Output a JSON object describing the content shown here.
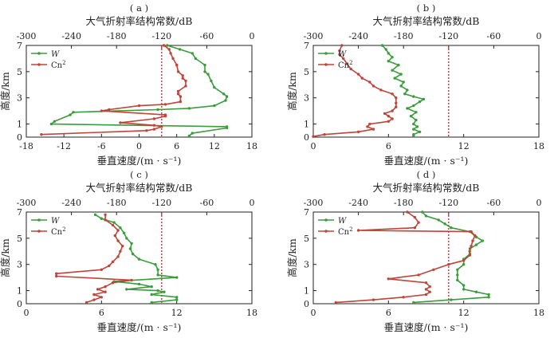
{
  "figure": {
    "legend_w": "W",
    "legend_cn": "Cn",
    "legend_cn_sup": "2",
    "colors": {
      "w": "#3a9c3a",
      "cn": "#c0443a",
      "vline": "#b03030",
      "axis": "#222222"
    }
  },
  "chart_data": [
    {
      "id": "a",
      "type": "line",
      "panel_label": "( a )",
      "top_xlabel": "大气折射率结构常数/dB",
      "bottom_xlabel": "垂直速度/(m · s⁻¹)",
      "ylabel": "高度/km",
      "top_xlim": [
        -300,
        0
      ],
      "top_xticks": [
        "-300",
        "-240",
        "-180",
        "-120",
        "-60",
        "0"
      ],
      "bottom_xlim": [
        -18,
        18
      ],
      "bottom_xticks": [
        "-18",
        "-12",
        "-6",
        "0",
        "6",
        "12",
        "18"
      ],
      "ylim": [
        0,
        7
      ],
      "yticks": [
        "0",
        "1",
        "3",
        "5",
        "7"
      ],
      "ref_line_top_x": -120,
      "legend_position": "top-left",
      "series": [
        {
          "key": "w",
          "axis": "bottom",
          "points": [
            [
              8,
              0.1
            ],
            [
              8.5,
              0.3
            ],
            [
              14,
              0.7
            ],
            [
              14,
              0.8
            ],
            [
              -14,
              1.0
            ],
            [
              -13.5,
              1.2
            ],
            [
              -11,
              1.7
            ],
            [
              -10.5,
              1.9
            ],
            [
              3,
              2.1
            ],
            [
              8,
              2.2
            ],
            [
              12,
              2.4
            ],
            [
              13.8,
              2.8
            ],
            [
              14,
              3.1
            ],
            [
              13.5,
              3.3
            ],
            [
              12,
              3.8
            ],
            [
              11.5,
              4.3
            ],
            [
              11,
              4.8
            ],
            [
              10.5,
              5.0
            ],
            [
              10.5,
              5.5
            ],
            [
              9,
              6.0
            ],
            [
              8.5,
              6.4
            ],
            [
              6.5,
              6.7
            ],
            [
              4.5,
              7.0
            ]
          ]
        },
        {
          "key": "cn",
          "axis": "top",
          "points": [
            [
              -280,
              0.2
            ],
            [
              -140,
              0.5
            ],
            [
              -130,
              0.6
            ],
            [
              -120,
              0.8
            ],
            [
              -130,
              0.9
            ],
            [
              -175,
              1.1
            ],
            [
              -130,
              1.4
            ],
            [
              -115,
              1.6
            ],
            [
              -115,
              1.7
            ],
            [
              -200,
              2.0
            ],
            [
              -190,
              2.1
            ],
            [
              -150,
              2.4
            ],
            [
              -115,
              2.5
            ],
            [
              -95,
              2.7
            ],
            [
              -95,
              3.1
            ],
            [
              -98,
              3.3
            ],
            [
              -98,
              3.5
            ],
            [
              -88,
              3.9
            ],
            [
              -88,
              4.3
            ],
            [
              -92,
              4.5
            ],
            [
              -92,
              4.7
            ],
            [
              -98,
              5.0
            ],
            [
              -100,
              5.5
            ],
            [
              -105,
              6.0
            ],
            [
              -108,
              6.4
            ],
            [
              -110,
              6.7
            ],
            [
              -117,
              7.0
            ]
          ]
        }
      ]
    },
    {
      "id": "b",
      "type": "line",
      "panel_label": "( b )",
      "top_xlabel": "大气折射率结构常数/dB",
      "bottom_xlabel": "垂直速度/(m · s⁻¹)",
      "ylabel": "高度/km",
      "top_xlim": [
        -300,
        0
      ],
      "top_xticks": [
        "-300",
        "-240",
        "-180",
        "-120",
        "-60",
        "0"
      ],
      "bottom_xlim": [
        0,
        18
      ],
      "bottom_xticks": [
        "0",
        "6",
        "12",
        "18"
      ],
      "ylim": [
        0,
        7
      ],
      "yticks": [
        "0",
        "1",
        "3",
        "5",
        "7"
      ],
      "ref_line_top_x": -120,
      "legend_position": "top-left",
      "series": [
        {
          "key": "w",
          "axis": "bottom",
          "points": [
            [
              8,
              0.1
            ],
            [
              8,
              0.2
            ],
            [
              8.5,
              0.4
            ],
            [
              8,
              0.6
            ],
            [
              8.3,
              0.8
            ],
            [
              8,
              1.0
            ],
            [
              8.2,
              1.3
            ],
            [
              7.8,
              1.6
            ],
            [
              8.2,
              1.9
            ],
            [
              7.5,
              2.2
            ],
            [
              8,
              2.4
            ],
            [
              8.5,
              2.7
            ],
            [
              8.8,
              2.9
            ],
            [
              8,
              3.1
            ],
            [
              7.3,
              3.3
            ],
            [
              7.5,
              3.6
            ],
            [
              7,
              3.9
            ],
            [
              7.2,
              4.2
            ],
            [
              6.5,
              4.5
            ],
            [
              7,
              4.8
            ],
            [
              6.3,
              5.1
            ],
            [
              6.8,
              5.5
            ],
            [
              6,
              5.8
            ],
            [
              6.3,
              6.1
            ],
            [
              6,
              6.4
            ],
            [
              5.8,
              6.7
            ],
            [
              5.5,
              7.0
            ]
          ]
        },
        {
          "key": "cn",
          "axis": "top",
          "points": [
            [
              -300,
              0.05
            ],
            [
              -285,
              0.2
            ],
            [
              -240,
              0.4
            ],
            [
              -220,
              0.6
            ],
            [
              -228,
              0.8
            ],
            [
              -225,
              1.0
            ],
            [
              -200,
              1.2
            ],
            [
              -195,
              1.4
            ],
            [
              -200,
              1.6
            ],
            [
              -205,
              1.8
            ],
            [
              -195,
              2.0
            ],
            [
              -190,
              2.3
            ],
            [
              -190,
              2.6
            ],
            [
              -190,
              3.0
            ],
            [
              -195,
              3.3
            ],
            [
              -210,
              3.6
            ],
            [
              -220,
              3.9
            ],
            [
              -225,
              4.2
            ],
            [
              -235,
              4.5
            ],
            [
              -240,
              4.8
            ],
            [
              -250,
              5.2
            ],
            [
              -255,
              5.6
            ],
            [
              -260,
              6.0
            ],
            [
              -265,
              6.3
            ],
            [
              -265,
              6.6
            ],
            [
              -262,
              7.0
            ]
          ]
        }
      ]
    },
    {
      "id": "c",
      "type": "line",
      "panel_label": "( c )",
      "top_xlabel": "大气折射率结构常数/dB",
      "bottom_xlabel": "垂直速度/(m · s⁻¹)",
      "ylabel": "高度/km",
      "top_xlim": [
        -300,
        0
      ],
      "top_xticks": [
        "-300",
        "-240",
        "-180",
        "-120",
        "-60",
        "0"
      ],
      "bottom_xlim": [
        0,
        18
      ],
      "bottom_xticks": [
        "0",
        "6",
        "12",
        "18"
      ],
      "ylim": [
        0,
        7
      ],
      "yticks": [
        "0",
        "1",
        "3",
        "5",
        "7"
      ],
      "ref_line_top_x": -120,
      "legend_position": "top-left",
      "series": [
        {
          "key": "w",
          "axis": "bottom",
          "points": [
            [
              10,
              0.1
            ],
            [
              12,
              0.3
            ],
            [
              12,
              0.5
            ],
            [
              10,
              0.7
            ],
            [
              11,
              0.9
            ],
            [
              10.5,
              1.0
            ],
            [
              8,
              1.1
            ],
            [
              10,
              1.3
            ],
            [
              9,
              1.5
            ],
            [
              7,
              1.7
            ],
            [
              12,
              2.0
            ],
            [
              10.5,
              2.2
            ],
            [
              10.5,
              2.6
            ],
            [
              10.3,
              3.0
            ],
            [
              9,
              3.4
            ],
            [
              8.5,
              3.8
            ],
            [
              8.3,
              4.2
            ],
            [
              8.4,
              4.6
            ],
            [
              8,
              5.0
            ],
            [
              7.8,
              5.4
            ],
            [
              7.5,
              5.8
            ],
            [
              7,
              6.2
            ],
            [
              6,
              6.5
            ],
            [
              5.5,
              6.8
            ]
          ]
        },
        {
          "key": "cn",
          "axis": "top",
          "points": [
            [
              -220,
              0.1
            ],
            [
              -210,
              0.3
            ],
            [
              -200,
              0.5
            ],
            [
              -210,
              0.7
            ],
            [
              -195,
              0.9
            ],
            [
              -205,
              1.1
            ],
            [
              -195,
              1.3
            ],
            [
              -185,
              1.6
            ],
            [
              -160,
              1.8
            ],
            [
              -260,
              2.1
            ],
            [
              -260,
              2.3
            ],
            [
              -200,
              2.6
            ],
            [
              -190,
              2.9
            ],
            [
              -185,
              3.2
            ],
            [
              -178,
              3.6
            ],
            [
              -175,
              4.0
            ],
            [
              -172,
              4.4
            ],
            [
              -178,
              4.8
            ],
            [
              -182,
              5.2
            ],
            [
              -178,
              5.6
            ],
            [
              -185,
              6.0
            ],
            [
              -195,
              6.4
            ],
            [
              -195,
              6.8
            ]
          ]
        }
      ]
    },
    {
      "id": "d",
      "type": "line",
      "panel_label": "( d )",
      "top_xlabel": "大气折射率结构常数/dB",
      "bottom_xlabel": "垂直速度/(m · s⁻¹)",
      "ylabel": "高度/km",
      "top_xlim": [
        -300,
        0
      ],
      "top_xticks": [
        "-300",
        "-240",
        "-180",
        "-120",
        "-60",
        "0"
      ],
      "bottom_xlim": [
        0,
        18
      ],
      "bottom_xticks": [
        "0",
        "6",
        "12",
        "18"
      ],
      "ylim": [
        0,
        7
      ],
      "yticks": [
        "0",
        "1",
        "3",
        "5",
        "7"
      ],
      "ref_line_top_x": -120,
      "legend_position": "top-left",
      "series": [
        {
          "key": "w",
          "axis": "bottom",
          "points": [
            [
              8,
              0.1
            ],
            [
              11,
              0.3
            ],
            [
              14,
              0.5
            ],
            [
              14,
              0.7
            ],
            [
              13,
              0.9
            ],
            [
              12,
              1.1
            ],
            [
              12,
              1.4
            ],
            [
              11.5,
              1.8
            ],
            [
              11.5,
              2.2
            ],
            [
              11.5,
              2.6
            ],
            [
              12,
              3.0
            ],
            [
              12,
              3.4
            ],
            [
              12.5,
              3.8
            ],
            [
              12.5,
              4.2
            ],
            [
              13,
              4.5
            ],
            [
              13.5,
              4.8
            ],
            [
              13,
              5.1
            ],
            [
              12.5,
              5.5
            ],
            [
              11,
              5.8
            ],
            [
              10.5,
              6.1
            ],
            [
              10,
              6.4
            ],
            [
              9,
              6.7
            ],
            [
              8.7,
              7.0
            ]
          ]
        },
        {
          "key": "cn",
          "axis": "top",
          "points": [
            [
              -270,
              0.1
            ],
            [
              -220,
              0.3
            ],
            [
              -180,
              0.5
            ],
            [
              -150,
              0.7
            ],
            [
              -145,
              0.9
            ],
            [
              -150,
              1.1
            ],
            [
              -145,
              1.3
            ],
            [
              -150,
              1.6
            ],
            [
              -200,
              1.9
            ],
            [
              -160,
              2.2
            ],
            [
              -140,
              2.6
            ],
            [
              -120,
              3.0
            ],
            [
              -100,
              3.3
            ],
            [
              -92,
              3.7
            ],
            [
              -92,
              4.0
            ],
            [
              -90,
              4.4
            ],
            [
              -88,
              4.8
            ],
            [
              -85,
              5.2
            ],
            [
              -90,
              5.5
            ],
            [
              -240,
              5.6
            ],
            [
              -165,
              5.8
            ],
            [
              -160,
              6.2
            ],
            [
              -165,
              6.6
            ],
            [
              -175,
              7.0
            ]
          ]
        }
      ]
    }
  ]
}
